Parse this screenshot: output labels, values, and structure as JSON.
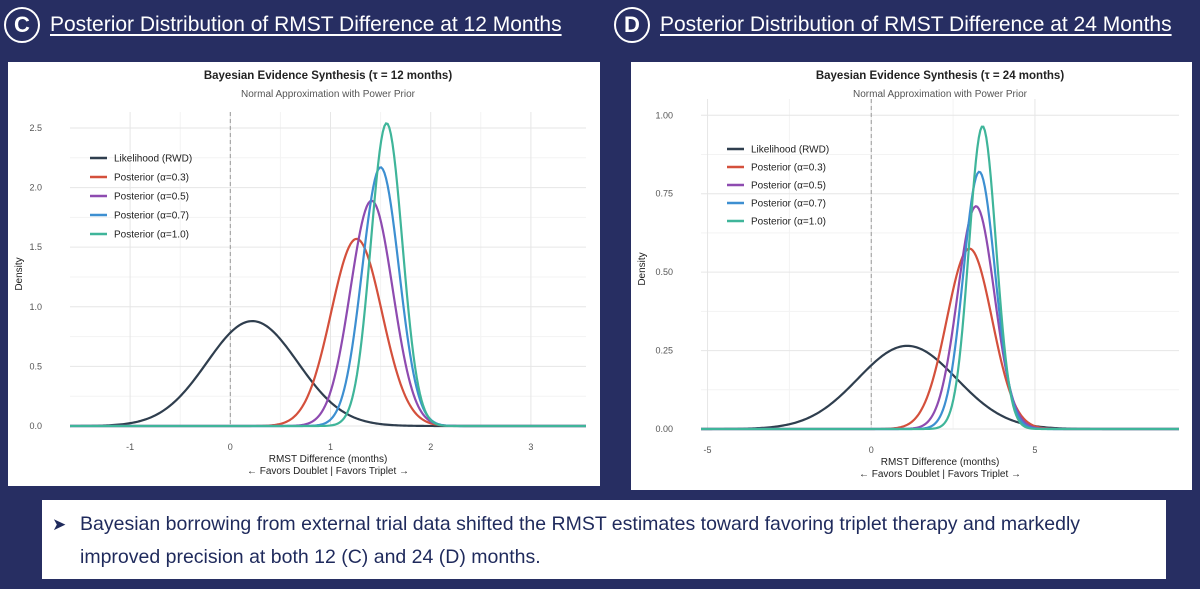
{
  "panels": [
    {
      "badge": "C",
      "heading": "Posterior Distribution of RMST Difference at 12 Months"
    },
    {
      "badge": "D",
      "heading": "Posterior Distribution of RMST Difference at 24 Months"
    }
  ],
  "note": {
    "bullet_icon": "arrow-bullet-icon",
    "text": "Bayesian borrowing from external trial data shifted the RMST estimates toward favoring triplet therapy and markedly improved precision at both 12 (C) and 24 (D) months."
  },
  "chart_data": [
    {
      "type": "line",
      "title": "Bayesian Evidence Synthesis (τ = 12 months)",
      "subtitle": "Normal Approximation with Power Prior",
      "xlabel": "RMST Difference (months)",
      "xlabel2": "← Favors Doublet | Favors Triplet →",
      "ylabel": "Density",
      "xlim": [
        -1.6,
        3.55
      ],
      "ylim": [
        0,
        2.55
      ],
      "xticks": [
        -1,
        0,
        1,
        2,
        3
      ],
      "yticks": [
        0.0,
        0.5,
        1.0,
        1.5,
        2.0,
        2.5
      ],
      "ytick_labels": [
        "0.0",
        "0.5",
        "1.0",
        "1.5",
        "2.0",
        "2.5"
      ],
      "vline_x": 0,
      "grid": true,
      "legend_position": "top-left",
      "series": [
        {
          "name": "Likelihood (RWD)",
          "color": "#2f3e4e",
          "mean": 0.22,
          "peak": 0.88
        },
        {
          "name": "Posterior (α=0.3)",
          "color": "#d4503c",
          "mean": 1.26,
          "peak": 1.57
        },
        {
          "name": "Posterior (α=0.5)",
          "color": "#8e4bb0",
          "mean": 1.41,
          "peak": 1.89
        },
        {
          "name": "Posterior (α=0.7)",
          "color": "#3d8fd1",
          "mean": 1.5,
          "peak": 2.17
        },
        {
          "name": "Posterior (α=1.0)",
          "color": "#3fb59a",
          "mean": 1.56,
          "peak": 2.54
        }
      ]
    },
    {
      "type": "line",
      "title": "Bayesian Evidence Synthesis (τ = 24 months)",
      "subtitle": "Normal Approximation with Power Prior",
      "xlabel": "RMST Difference (months)",
      "xlabel2": "← Favors Doublet | Favors Triplet →",
      "ylabel": "Density",
      "xlim": [
        -5.2,
        9.4
      ],
      "ylim": [
        0,
        1.02
      ],
      "xticks": [
        -5,
        0,
        5
      ],
      "yticks": [
        0.0,
        0.25,
        0.5,
        0.75,
        1.0
      ],
      "ytick_labels": [
        "0.00",
        "0.25",
        "0.50",
        "0.75",
        "1.00"
      ],
      "vline_x": 0,
      "grid": true,
      "legend_position": "top-left",
      "series": [
        {
          "name": "Likelihood (RWD)",
          "color": "#2f3e4e",
          "mean": 1.1,
          "peak": 0.265
        },
        {
          "name": "Posterior (α=0.3)",
          "color": "#d4503c",
          "mean": 3.0,
          "peak": 0.575
        },
        {
          "name": "Posterior (α=0.5)",
          "color": "#8e4bb0",
          "mean": 3.2,
          "peak": 0.71
        },
        {
          "name": "Posterior (α=0.7)",
          "color": "#3d8fd1",
          "mean": 3.3,
          "peak": 0.82
        },
        {
          "name": "Posterior (α=1.0)",
          "color": "#3fb59a",
          "mean": 3.4,
          "peak": 0.965
        }
      ]
    }
  ]
}
